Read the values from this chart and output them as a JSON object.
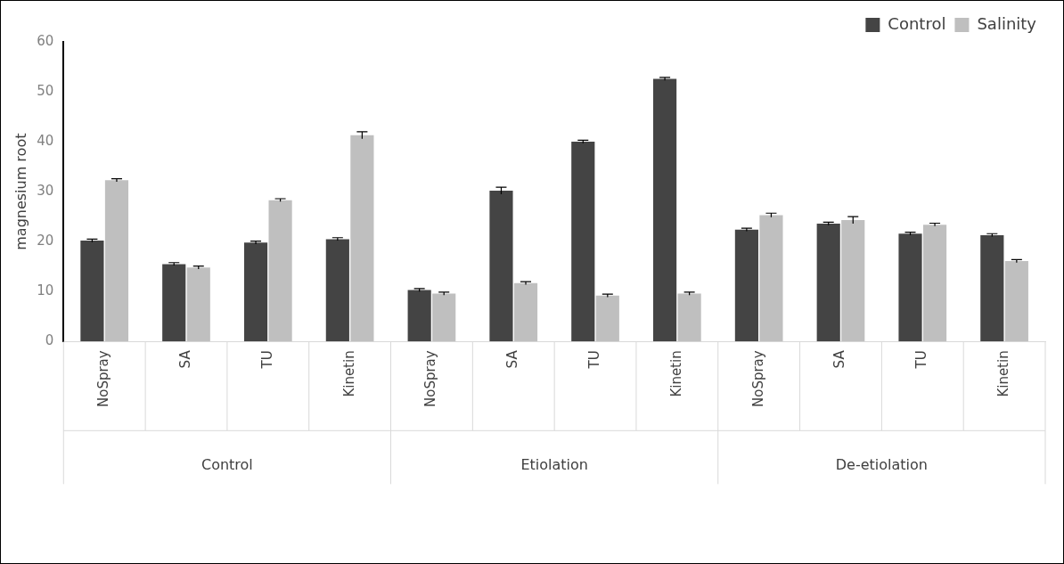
{
  "chart_data": {
    "type": "bar",
    "ylabel": "magnesium root",
    "categories": [
      "NoSpray",
      "SA",
      "TU",
      "Kinetin",
      "NoSpray",
      "SA",
      "TU",
      "Kinetin",
      "NoSpray",
      "SA",
      "TU",
      "Kinetin"
    ],
    "annotations": [
      "Control",
      "Etiolation",
      "De-etiolation"
    ],
    "series": [
      {
        "name": "Control",
        "color": "#444444",
        "values": [
          20.2,
          15.5,
          19.8,
          20.5,
          10.3,
          30.2,
          40.0,
          52.6,
          22.4,
          23.6,
          21.6,
          21.3
        ],
        "errors": [
          0.3,
          0.3,
          0.3,
          0.3,
          0.3,
          0.7,
          0.3,
          0.3,
          0.3,
          0.3,
          0.3,
          0.3
        ]
      },
      {
        "name": "Salinity",
        "color": "#bfbfbf",
        "values": [
          32.3,
          14.8,
          28.3,
          41.3,
          9.6,
          11.7,
          9.2,
          9.6,
          25.3,
          24.3,
          23.4,
          16.1
        ],
        "errors": [
          0.3,
          0.3,
          0.3,
          0.7,
          0.3,
          0.3,
          0.3,
          0.3,
          0.4,
          0.7,
          0.3,
          0.3
        ]
      }
    ],
    "ylim": [
      0,
      60
    ],
    "yticks": [
      0,
      10,
      20,
      30,
      40,
      50,
      60
    ],
    "grid": false,
    "legend": "top right"
  }
}
